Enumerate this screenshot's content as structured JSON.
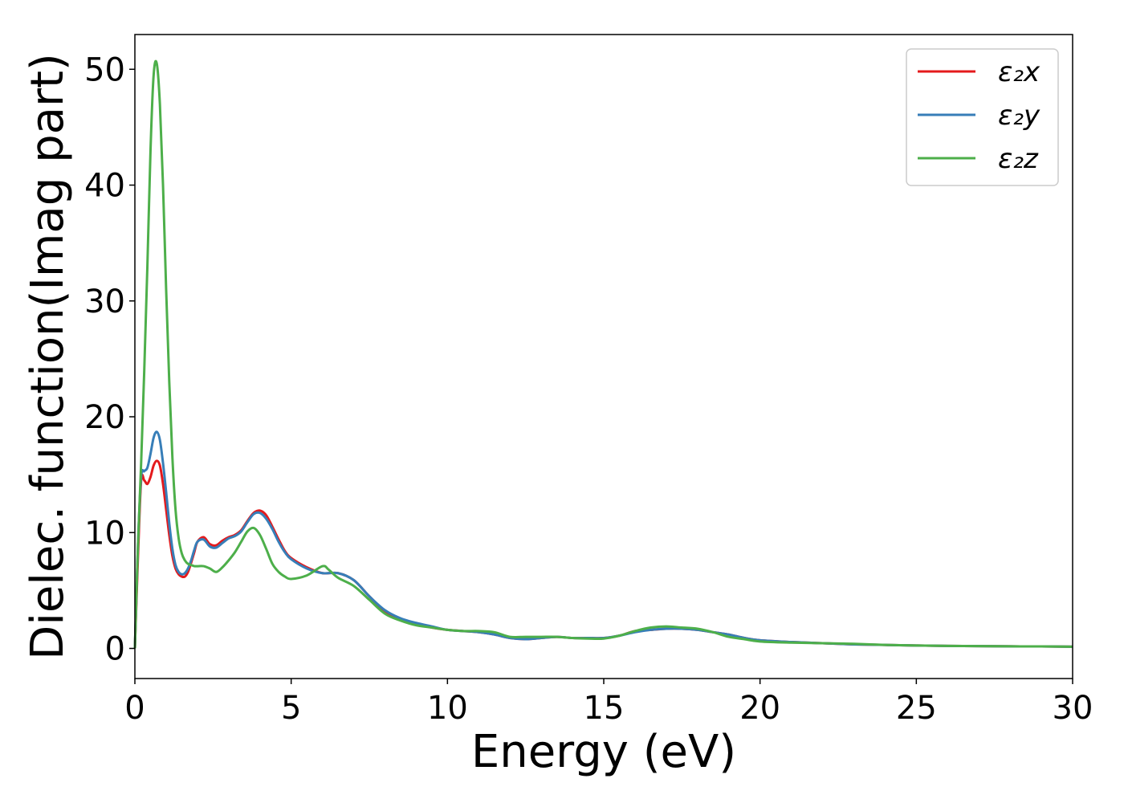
{
  "chart_data": {
    "type": "line",
    "xlabel": "Energy (eV)",
    "ylabel": "Dielec. function(Imag part)",
    "xlim": [
      0,
      30
    ],
    "ylim": [
      -2.6,
      53
    ],
    "xticks": [
      0,
      5,
      10,
      15,
      20,
      25,
      30
    ],
    "xtick_labels": [
      "0",
      "5",
      "10",
      "15",
      "20",
      "25",
      "30"
    ],
    "yticks": [
      0,
      10,
      20,
      30,
      40,
      50
    ],
    "ytick_labels": [
      "0",
      "10",
      "20",
      "30",
      "40",
      "50"
    ],
    "grid": false,
    "legend_position": "upper right",
    "series": [
      {
        "name": "ε₂x",
        "color": "#e41a1c",
        "x": [
          0,
          0.1,
          0.2,
          0.3,
          0.4,
          0.5,
          0.6,
          0.7,
          0.8,
          0.9,
          1.0,
          1.1,
          1.2,
          1.3,
          1.4,
          1.5,
          1.6,
          1.7,
          1.8,
          1.9,
          2.0,
          2.2,
          2.4,
          2.6,
          2.8,
          3.0,
          3.2,
          3.4,
          3.6,
          3.8,
          4.0,
          4.2,
          4.4,
          4.6,
          4.8,
          5.0,
          5.5,
          6.0,
          6.5,
          7.0,
          7.5,
          8.0,
          8.5,
          9.0,
          9.5,
          10.0,
          10.5,
          11.0,
          11.5,
          12.0,
          12.5,
          13.0,
          13.5,
          14.0,
          14.5,
          15.0,
          15.5,
          16.0,
          16.5,
          17.0,
          17.5,
          18.0,
          18.5,
          19.0,
          19.5,
          20.0,
          21.0,
          22.0,
          23.0,
          24.0,
          25.0,
          26.0,
          27.0,
          28.0,
          29.0,
          30.0
        ],
        "y": [
          0,
          8,
          14.5,
          14.5,
          14.2,
          14.8,
          15.8,
          16.2,
          15.8,
          14.2,
          12.0,
          9.8,
          8.0,
          6.9,
          6.4,
          6.2,
          6.2,
          6.6,
          7.4,
          8.3,
          9.2,
          9.6,
          9.0,
          8.9,
          9.3,
          9.6,
          9.8,
          10.2,
          11.0,
          11.7,
          11.9,
          11.5,
          10.5,
          9.4,
          8.4,
          7.8,
          7.0,
          6.5,
          6.5,
          5.9,
          4.5,
          3.2,
          2.5,
          2.1,
          1.8,
          1.6,
          1.5,
          1.4,
          1.2,
          0.9,
          0.8,
          0.9,
          1.0,
          0.9,
          0.9,
          0.9,
          1.1,
          1.5,
          1.6,
          1.7,
          1.7,
          1.6,
          1.4,
          1.2,
          0.9,
          0.7,
          0.55,
          0.45,
          0.35,
          0.3,
          0.25,
          0.22,
          0.2,
          0.18,
          0.17,
          0.15
        ]
      },
      {
        "name": "ε₂y",
        "color": "#377eb8",
        "x": [
          0,
          0.1,
          0.2,
          0.3,
          0.4,
          0.5,
          0.6,
          0.7,
          0.8,
          0.9,
          1.0,
          1.1,
          1.2,
          1.3,
          1.4,
          1.5,
          1.6,
          1.7,
          1.8,
          1.9,
          2.0,
          2.2,
          2.4,
          2.6,
          2.8,
          3.0,
          3.2,
          3.4,
          3.6,
          3.8,
          4.0,
          4.2,
          4.4,
          4.6,
          4.8,
          5.0,
          5.5,
          6.0,
          6.5,
          7.0,
          7.5,
          8.0,
          8.5,
          9.0,
          9.5,
          10.0,
          10.5,
          11.0,
          11.5,
          12.0,
          12.5,
          13.0,
          13.5,
          14.0,
          14.5,
          15.0,
          15.5,
          16.0,
          16.5,
          17.0,
          17.5,
          18.0,
          18.5,
          19.0,
          19.5,
          20.0,
          21.0,
          22.0,
          23.0,
          24.0,
          25.0,
          26.0,
          27.0,
          28.0,
          29.0,
          30.0
        ],
        "y": [
          0,
          9,
          14.8,
          15.3,
          15.6,
          16.8,
          18.2,
          18.7,
          18.0,
          16.0,
          13.5,
          10.8,
          8.6,
          7.2,
          6.6,
          6.4,
          6.5,
          6.9,
          7.6,
          8.5,
          9.2,
          9.4,
          8.8,
          8.7,
          9.1,
          9.5,
          9.7,
          10.1,
          10.9,
          11.6,
          11.7,
          11.2,
          10.3,
          9.2,
          8.3,
          7.7,
          6.9,
          6.5,
          6.5,
          5.9,
          4.5,
          3.3,
          2.6,
          2.2,
          1.9,
          1.6,
          1.5,
          1.4,
          1.2,
          0.9,
          0.8,
          0.9,
          1.0,
          0.9,
          0.9,
          0.9,
          1.1,
          1.4,
          1.6,
          1.7,
          1.7,
          1.6,
          1.4,
          1.2,
          0.9,
          0.7,
          0.55,
          0.45,
          0.35,
          0.3,
          0.25,
          0.22,
          0.2,
          0.18,
          0.17,
          0.15
        ]
      },
      {
        "name": "ε₂z",
        "color": "#4daf4a",
        "x": [
          0,
          0.1,
          0.2,
          0.3,
          0.4,
          0.5,
          0.6,
          0.7,
          0.8,
          0.9,
          1.0,
          1.1,
          1.2,
          1.3,
          1.4,
          1.5,
          1.6,
          1.7,
          1.8,
          1.9,
          2.0,
          2.2,
          2.4,
          2.6,
          2.8,
          3.0,
          3.2,
          3.4,
          3.6,
          3.8,
          4.0,
          4.2,
          4.4,
          4.6,
          4.8,
          5.0,
          5.5,
          6.0,
          6.2,
          6.5,
          7.0,
          7.5,
          8.0,
          8.5,
          9.0,
          9.5,
          10.0,
          10.5,
          11.0,
          11.5,
          12.0,
          12.5,
          13.0,
          13.5,
          14.0,
          14.5,
          15.0,
          15.5,
          16.0,
          16.5,
          17.0,
          17.5,
          18.0,
          18.5,
          19.0,
          19.5,
          20.0,
          21.0,
          22.0,
          23.0,
          24.0,
          25.0,
          26.0,
          27.0,
          28.0,
          29.0,
          30.0
        ],
        "y": [
          0,
          9,
          16,
          24,
          33,
          43,
          49.5,
          50.5,
          47,
          40,
          31,
          23,
          16.5,
          12,
          9.5,
          8.2,
          7.6,
          7.3,
          7.2,
          7.1,
          7.1,
          7.1,
          6.9,
          6.6,
          7.0,
          7.6,
          8.3,
          9.2,
          10.1,
          10.4,
          9.8,
          8.6,
          7.3,
          6.6,
          6.2,
          6.0,
          6.3,
          7.1,
          6.8,
          6.1,
          5.4,
          4.2,
          3.0,
          2.4,
          2.0,
          1.8,
          1.6,
          1.5,
          1.5,
          1.4,
          1.0,
          1.0,
          1.0,
          1.0,
          0.9,
          0.85,
          0.85,
          1.1,
          1.5,
          1.8,
          1.9,
          1.8,
          1.7,
          1.4,
          1.0,
          0.8,
          0.6,
          0.5,
          0.45,
          0.4,
          0.3,
          0.25,
          0.22,
          0.2,
          0.18,
          0.17,
          0.15
        ]
      }
    ]
  }
}
